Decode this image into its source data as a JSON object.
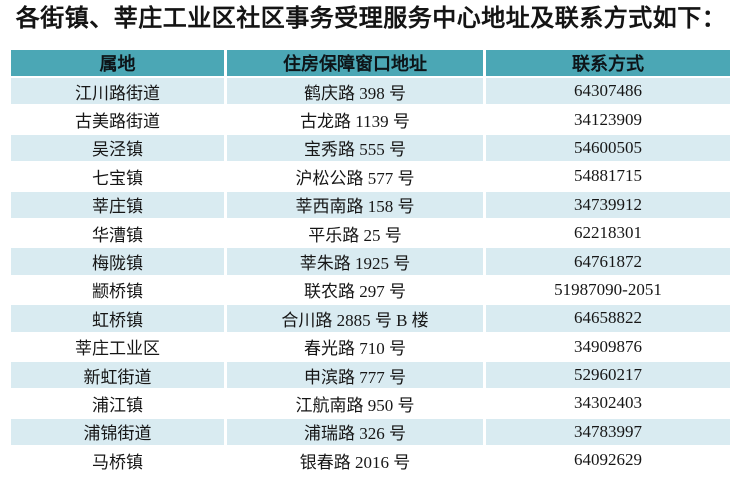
{
  "title": "各街镇、莘庄工业区社区事务受理服务中心地址及联系方式如下：",
  "table": {
    "columns": [
      "属地",
      "住房保障窗口地址",
      "联系方式"
    ],
    "rows": [
      [
        "江川路街道",
        "鹤庆路 398 号",
        "64307486"
      ],
      [
        "古美路街道",
        "古龙路 1139 号",
        "34123909"
      ],
      [
        "吴泾镇",
        "宝秀路 555 号",
        "54600505"
      ],
      [
        "七宝镇",
        "沪松公路 577 号",
        "54881715"
      ],
      [
        "莘庄镇",
        "莘西南路 158 号",
        "34739912"
      ],
      [
        "华漕镇",
        "平乐路 25 号",
        "62218301"
      ],
      [
        "梅陇镇",
        "莘朱路 1925 号",
        "64761872"
      ],
      [
        "颛桥镇",
        "联农路 297 号",
        "51987090-2051"
      ],
      [
        "虹桥镇",
        "合川路 2885 号 B 楼",
        "64658822"
      ],
      [
        "莘庄工业区",
        "春光路 710 号",
        "34909876"
      ],
      [
        "新虹街道",
        "申滨路 777 号",
        "52960217"
      ],
      [
        "浦江镇",
        "江航南路 950 号",
        "34302403"
      ],
      [
        "浦锦街道",
        "浦瑞路 326 号",
        "34783997"
      ],
      [
        "马桥镇",
        "银春路 2016 号",
        "64092629"
      ]
    ]
  },
  "colors": {
    "header_bg": "#4BA7B5",
    "row_alt_bg": "#D9EBF1",
    "separator": "#FFFFFF",
    "text": "#161616",
    "title_text": "#141414"
  }
}
